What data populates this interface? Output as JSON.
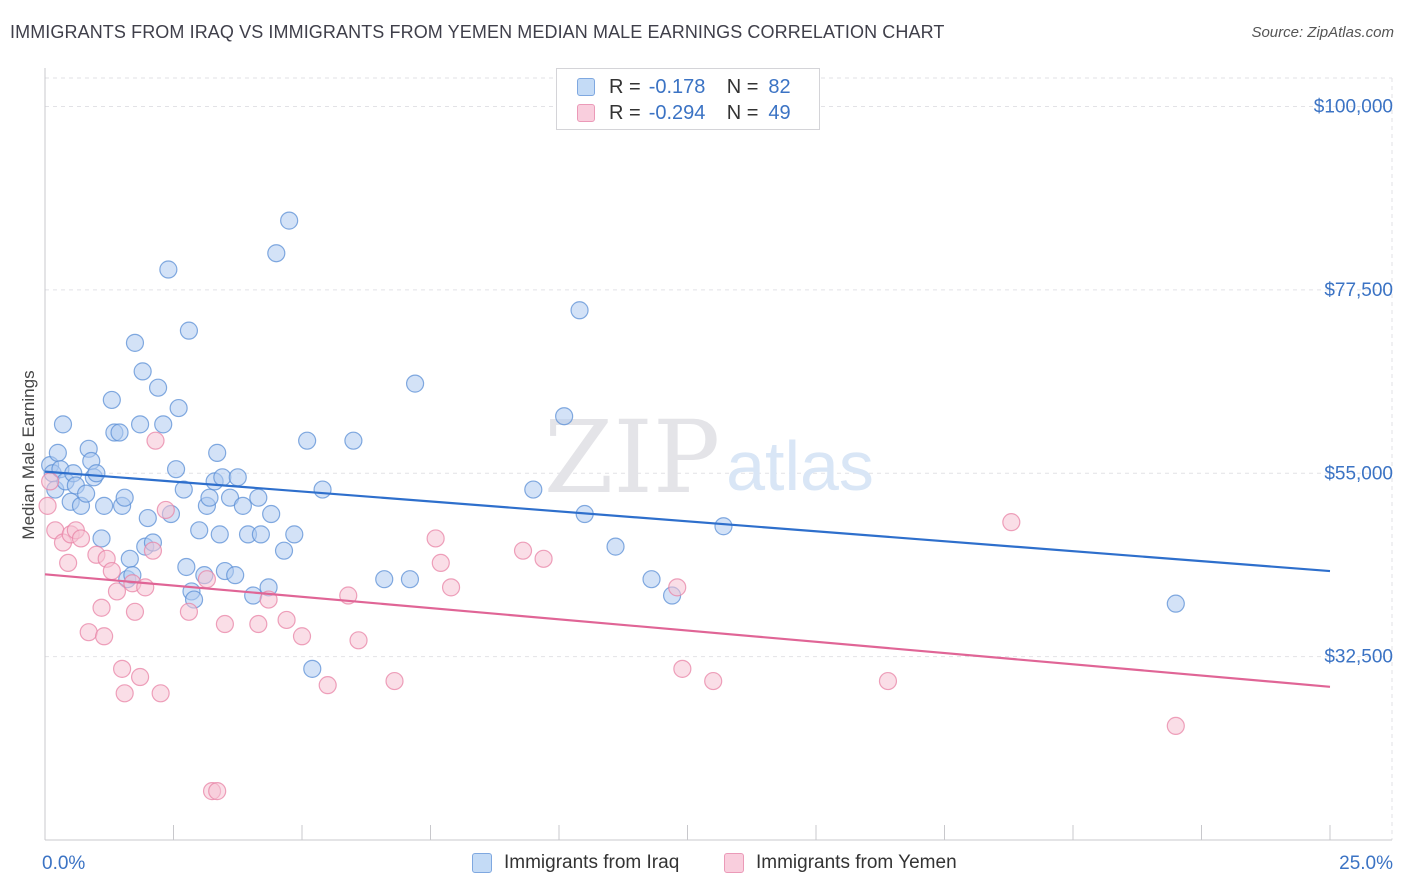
{
  "title": "IMMIGRANTS FROM IRAQ VS IMMIGRANTS FROM YEMEN MEDIAN MALE EARNINGS CORRELATION CHART",
  "source": "Source: ZipAtlas.com",
  "watermark": {
    "zip": "ZIP",
    "atlas": "atlas"
  },
  "colors": {
    "iraq_fill": "#aecbf1",
    "iraq_stroke": "#5b8fd6",
    "iraq_line": "#2e6fcc",
    "yemen_fill": "#f6c3d3",
    "yemen_stroke": "#e883a6",
    "yemen_line": "#e06596",
    "tick_label": "#3b73c4",
    "grid": "#e2e2e6"
  },
  "legend_top": {
    "r_label": "R =",
    "n_label": "N =",
    "rows": [
      {
        "series": "Immigrants from Iraq",
        "r": "-0.178",
        "n": "82"
      },
      {
        "series": "Immigrants from Yemen",
        "r": "-0.294",
        "n": "49"
      }
    ]
  },
  "chart_data": {
    "type": "scatter",
    "title": "IMMIGRANTS FROM IRAQ VS IMMIGRANTS FROM YEMEN MEDIAN MALE EARNINGS CORRELATION CHART",
    "xlabel": "",
    "ylabel": "Median Male Earnings",
    "xlim": [
      0,
      25
    ],
    "ylim": [
      10000,
      103500
    ],
    "x_tick_labels": {
      "min": "0.0%",
      "max": "25.0%"
    },
    "y_ticks": [
      {
        "value": 32500,
        "label": "$32,500"
      },
      {
        "value": 55000,
        "label": "$55,000"
      },
      {
        "value": 77500,
        "label": "$77,500"
      },
      {
        "value": 100000,
        "label": "$100,000"
      }
    ],
    "grid": true,
    "series": [
      {
        "name": "Immigrants from Iraq",
        "trend": {
          "x0": 0,
          "y0": 55200,
          "x1": 25,
          "y1": 43000
        },
        "points": [
          [
            0.1,
            56000
          ],
          [
            0.15,
            55000
          ],
          [
            0.2,
            53000
          ],
          [
            0.25,
            57500
          ],
          [
            0.3,
            55500
          ],
          [
            0.35,
            61000
          ],
          [
            0.4,
            54000
          ],
          [
            0.5,
            51500
          ],
          [
            0.55,
            55000
          ],
          [
            0.6,
            53500
          ],
          [
            0.7,
            51000
          ],
          [
            0.8,
            52500
          ],
          [
            0.85,
            58000
          ],
          [
            0.9,
            56500
          ],
          [
            0.95,
            54500
          ],
          [
            1.0,
            55000
          ],
          [
            1.1,
            47000
          ],
          [
            1.15,
            51000
          ],
          [
            1.3,
            64000
          ],
          [
            1.35,
            60000
          ],
          [
            1.45,
            60000
          ],
          [
            1.5,
            51000
          ],
          [
            1.55,
            52000
          ],
          [
            1.6,
            42000
          ],
          [
            1.65,
            44500
          ],
          [
            1.7,
            42500
          ],
          [
            1.75,
            71000
          ],
          [
            1.85,
            61000
          ],
          [
            1.9,
            67500
          ],
          [
            1.95,
            46000
          ],
          [
            2.0,
            49500
          ],
          [
            2.1,
            46500
          ],
          [
            2.2,
            65500
          ],
          [
            2.3,
            61000
          ],
          [
            2.4,
            80000
          ],
          [
            2.45,
            50000
          ],
          [
            2.55,
            55500
          ],
          [
            2.6,
            63000
          ],
          [
            2.7,
            53000
          ],
          [
            2.75,
            43500
          ],
          [
            2.8,
            72500
          ],
          [
            2.85,
            40500
          ],
          [
            2.9,
            39500
          ],
          [
            3.0,
            48000
          ],
          [
            3.1,
            42500
          ],
          [
            3.15,
            51000
          ],
          [
            3.2,
            52000
          ],
          [
            3.3,
            54000
          ],
          [
            3.35,
            57500
          ],
          [
            3.4,
            47500
          ],
          [
            3.45,
            54500
          ],
          [
            3.5,
            43000
          ],
          [
            3.6,
            52000
          ],
          [
            3.7,
            42500
          ],
          [
            3.75,
            54500
          ],
          [
            3.85,
            51000
          ],
          [
            3.95,
            47500
          ],
          [
            4.05,
            40000
          ],
          [
            4.15,
            52000
          ],
          [
            4.2,
            47500
          ],
          [
            4.35,
            41000
          ],
          [
            4.4,
            50000
          ],
          [
            4.5,
            82000
          ],
          [
            4.65,
            45500
          ],
          [
            4.75,
            86000
          ],
          [
            4.85,
            47500
          ],
          [
            5.1,
            59000
          ],
          [
            5.2,
            31000
          ],
          [
            5.4,
            53000
          ],
          [
            6.0,
            59000
          ],
          [
            6.6,
            42000
          ],
          [
            7.1,
            42000
          ],
          [
            7.2,
            66000
          ],
          [
            9.5,
            53000
          ],
          [
            10.1,
            62000
          ],
          [
            10.4,
            75000
          ],
          [
            10.5,
            50000
          ],
          [
            11.1,
            46000
          ],
          [
            11.8,
            42000
          ],
          [
            12.2,
            40000
          ],
          [
            13.2,
            48500
          ],
          [
            22.0,
            39000
          ]
        ]
      },
      {
        "name": "Immigrants from Yemen",
        "trend": {
          "x0": 0,
          "y0": 42600,
          "x1": 25,
          "y1": 28800
        },
        "points": [
          [
            0.05,
            51000
          ],
          [
            0.1,
            54000
          ],
          [
            0.2,
            48000
          ],
          [
            0.35,
            46500
          ],
          [
            0.45,
            44000
          ],
          [
            0.5,
            47500
          ],
          [
            0.6,
            48000
          ],
          [
            0.7,
            47000
          ],
          [
            0.85,
            35500
          ],
          [
            1.0,
            45000
          ],
          [
            1.1,
            38500
          ],
          [
            1.15,
            35000
          ],
          [
            1.2,
            44500
          ],
          [
            1.3,
            43000
          ],
          [
            1.4,
            40500
          ],
          [
            1.5,
            31000
          ],
          [
            1.55,
            28000
          ],
          [
            1.7,
            41500
          ],
          [
            1.75,
            38000
          ],
          [
            1.85,
            30000
          ],
          [
            1.95,
            41000
          ],
          [
            2.1,
            45500
          ],
          [
            2.15,
            59000
          ],
          [
            2.25,
            28000
          ],
          [
            2.35,
            50500
          ],
          [
            2.8,
            38000
          ],
          [
            3.15,
            42000
          ],
          [
            3.25,
            16000
          ],
          [
            3.35,
            16000
          ],
          [
            3.5,
            36500
          ],
          [
            4.15,
            36500
          ],
          [
            4.35,
            39500
          ],
          [
            4.7,
            37000
          ],
          [
            5.0,
            35000
          ],
          [
            5.5,
            29000
          ],
          [
            5.9,
            40000
          ],
          [
            6.1,
            34500
          ],
          [
            6.8,
            29500
          ],
          [
            7.6,
            47000
          ],
          [
            7.7,
            44000
          ],
          [
            7.9,
            41000
          ],
          [
            9.3,
            45500
          ],
          [
            9.7,
            44500
          ],
          [
            12.3,
            41000
          ],
          [
            12.4,
            31000
          ],
          [
            13.0,
            29500
          ],
          [
            16.4,
            29500
          ],
          [
            18.8,
            49000
          ],
          [
            22.0,
            24000
          ]
        ]
      }
    ]
  }
}
